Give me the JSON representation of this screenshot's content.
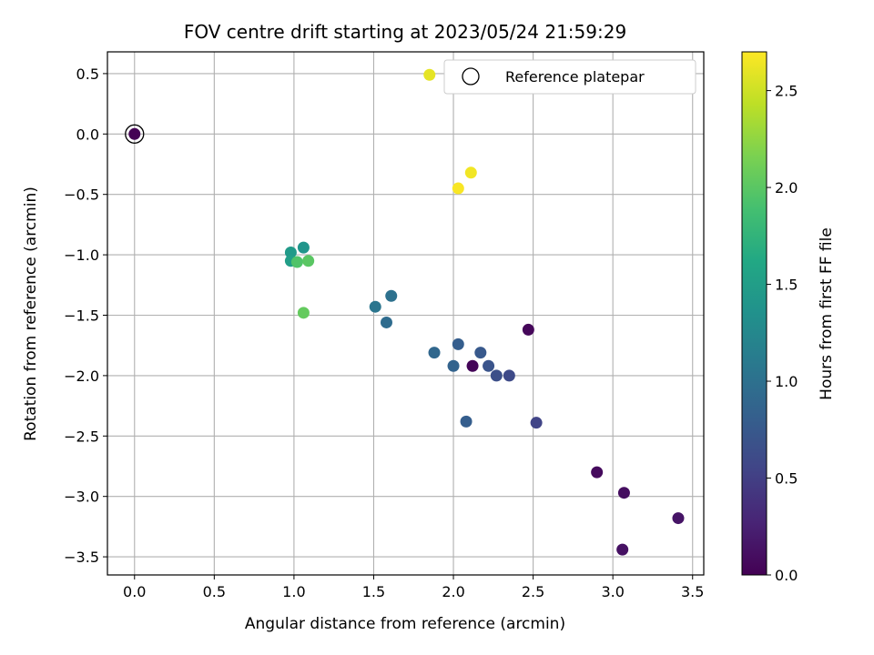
{
  "chart_data": {
    "type": "scatter",
    "title": "FOV centre drift starting at 2023/05/24 21:59:29",
    "xlabel": "Angular distance from reference (arcmin)",
    "ylabel": "Rotation from reference (arcmin)",
    "xlim": [
      -0.17,
      3.57
    ],
    "ylim": [
      -3.65,
      0.68
    ],
    "xticks": [
      0.0,
      0.5,
      1.0,
      1.5,
      2.0,
      2.5,
      3.0,
      3.5
    ],
    "xtick_labels": [
      "0.0",
      "0.5",
      "1.0",
      "1.5",
      "2.0",
      "2.5",
      "3.0",
      "3.5"
    ],
    "yticks": [
      0.5,
      0.0,
      -0.5,
      -1.0,
      -1.5,
      -2.0,
      -2.5,
      -3.0,
      -3.5
    ],
    "ytick_labels": [
      "0.5",
      "0.0",
      "−0.5",
      "−1.0",
      "−1.5",
      "−2.0",
      "−2.5",
      "−3.0",
      "−3.5"
    ],
    "grid": true,
    "legend": {
      "label": "Reference platepar",
      "position": "top-right"
    },
    "reference_point": {
      "x": 0.0,
      "y": 0.0
    },
    "colorbar": {
      "label": "Hours from first FF file",
      "colormap": "viridis",
      "range": [
        0.0,
        2.7
      ],
      "ticks": [
        0.0,
        0.5,
        1.0,
        1.5,
        2.0,
        2.5
      ],
      "tick_labels": [
        "0.0",
        "0.5",
        "1.0",
        "1.5",
        "2.0",
        "2.5"
      ]
    },
    "points": [
      {
        "x": 0.0,
        "y": 0.0,
        "c": 0.0
      },
      {
        "x": 2.12,
        "y": -1.92,
        "c": 0.03
      },
      {
        "x": 2.47,
        "y": -1.62,
        "c": 0.05
      },
      {
        "x": 2.9,
        "y": -2.8,
        "c": 0.07
      },
      {
        "x": 3.07,
        "y": -2.97,
        "c": 0.1
      },
      {
        "x": 3.06,
        "y": -3.44,
        "c": 0.12
      },
      {
        "x": 3.41,
        "y": -3.18,
        "c": 0.15
      },
      {
        "x": 2.52,
        "y": -2.39,
        "c": 0.55
      },
      {
        "x": 2.35,
        "y": -2.0,
        "c": 0.6
      },
      {
        "x": 2.27,
        "y": -2.0,
        "c": 0.65
      },
      {
        "x": 2.22,
        "y": -1.92,
        "c": 0.7
      },
      {
        "x": 2.17,
        "y": -1.81,
        "c": 0.75
      },
      {
        "x": 2.03,
        "y": -1.74,
        "c": 0.8
      },
      {
        "x": 2.08,
        "y": -2.38,
        "c": 0.8
      },
      {
        "x": 2.0,
        "y": -1.92,
        "c": 0.85
      },
      {
        "x": 1.88,
        "y": -1.81,
        "c": 0.9
      },
      {
        "x": 1.58,
        "y": -1.56,
        "c": 0.95
      },
      {
        "x": 1.61,
        "y": -1.34,
        "c": 1.0
      },
      {
        "x": 1.51,
        "y": -1.43,
        "c": 1.05
      },
      {
        "x": 1.06,
        "y": -0.94,
        "c": 1.4
      },
      {
        "x": 0.98,
        "y": -0.98,
        "c": 1.45
      },
      {
        "x": 0.98,
        "y": -1.05,
        "c": 1.5
      },
      {
        "x": 1.02,
        "y": -1.06,
        "c": 1.95
      },
      {
        "x": 1.09,
        "y": -1.05,
        "c": 2.0
      },
      {
        "x": 1.06,
        "y": -1.48,
        "c": 2.05
      },
      {
        "x": 1.85,
        "y": 0.49,
        "c": 2.6
      },
      {
        "x": 2.11,
        "y": -0.32,
        "c": 2.65
      },
      {
        "x": 2.03,
        "y": -0.45,
        "c": 2.68
      }
    ]
  }
}
